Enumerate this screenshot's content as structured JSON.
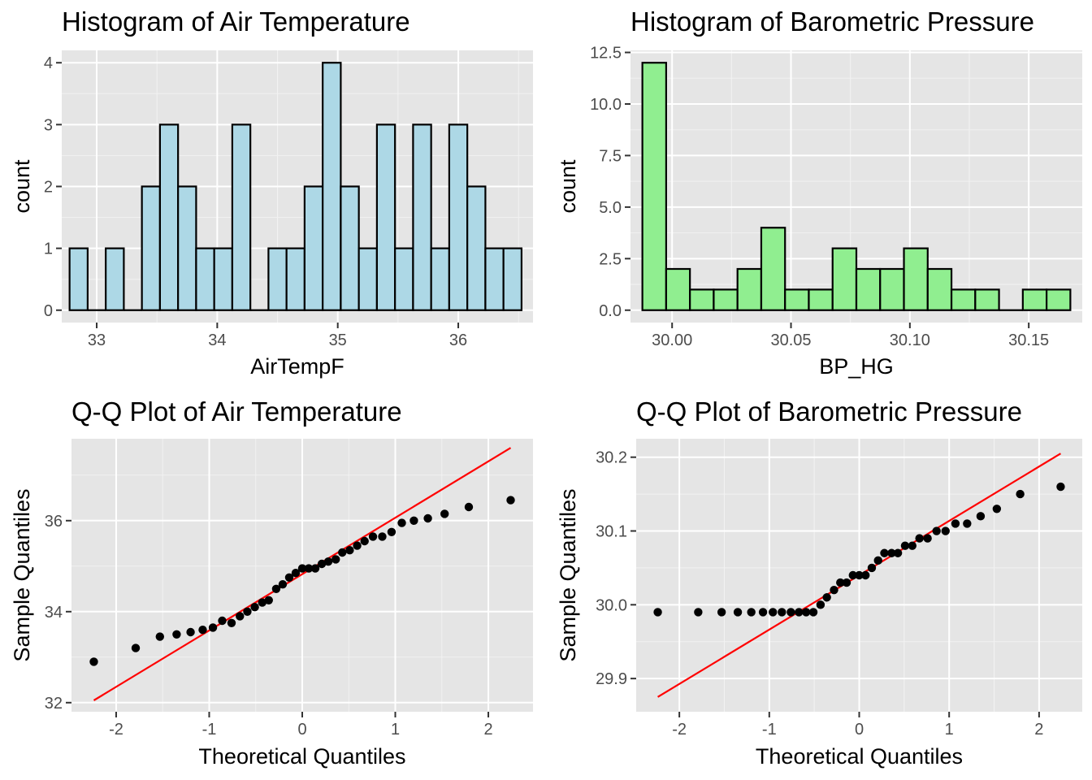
{
  "colors": {
    "panel_background": "#e5e5e5",
    "grid_major": "#ffffff",
    "grid_minor": "#f2f2f2",
    "tick": "#333333",
    "tick_text": "#4d4d4d",
    "bar_outline": "#000000",
    "point": "#000000",
    "reference_line": "#ff0000"
  },
  "chart_data": [
    {
      "type": "bar",
      "subtype": "histogram",
      "title": "Histogram of Air Temperature",
      "xlabel": "AirTempF",
      "ylabel": "count",
      "fill": "#add8e6",
      "xlim": [
        32.71,
        36.62
      ],
      "ylim": [
        -0.2,
        4.2
      ],
      "xticks": [
        33,
        34,
        35,
        36
      ],
      "xtick_labels": [
        "33",
        "34",
        "35",
        "36"
      ],
      "yticks": [
        0,
        1,
        2,
        3,
        4
      ],
      "ytick_labels": [
        "0",
        "1",
        "2",
        "3",
        "4"
      ],
      "bin_width": 0.15,
      "bin_centers": [
        32.85,
        33.0,
        33.15,
        33.3,
        33.45,
        33.6,
        33.75,
        33.9,
        34.05,
        34.2,
        34.35,
        34.5,
        34.65,
        34.8,
        34.95,
        35.1,
        35.25,
        35.4,
        35.55,
        35.7,
        35.85,
        36.0,
        36.15,
        36.3,
        36.45
      ],
      "values": [
        1,
        0,
        1,
        0,
        2,
        3,
        2,
        1,
        1,
        3,
        0,
        1,
        1,
        2,
        4,
        2,
        1,
        3,
        1,
        3,
        1,
        3,
        2,
        1,
        1
      ]
    },
    {
      "type": "bar",
      "subtype": "histogram",
      "title": "Histogram of Barometric Pressure",
      "xlabel": "BP_HG",
      "ylabel": "count",
      "fill": "#90ee90",
      "xlim": [
        29.9825,
        30.1725
      ],
      "ylim": [
        -0.6,
        12.6
      ],
      "xticks": [
        30.0,
        30.05,
        30.1,
        30.15
      ],
      "xtick_labels": [
        "30.00",
        "30.05",
        "30.10",
        "30.15"
      ],
      "yticks": [
        0,
        2.5,
        5,
        7.5,
        10,
        12.5
      ],
      "ytick_labels": [
        "0.0",
        "2.5",
        "5.0",
        "7.5",
        "10.0",
        "12.5"
      ],
      "bin_width": 0.01,
      "bin_centers": [
        29.9925,
        30.0025,
        30.0125,
        30.0225,
        30.0325,
        30.0425,
        30.0525,
        30.0625,
        30.0725,
        30.0825,
        30.0925,
        30.1025,
        30.1125,
        30.1225,
        30.1325,
        30.1425,
        30.1525,
        30.1625
      ],
      "values": [
        12,
        2,
        1,
        1,
        2,
        4,
        1,
        1,
        3,
        2,
        2,
        3,
        2,
        1,
        1,
        0,
        1,
        1
      ]
    },
    {
      "type": "scatter",
      "subtype": "qq",
      "title": "Q-Q Plot of Air Temperature",
      "xlabel": "Theoretical Quantiles",
      "ylabel": "Sample Quantiles",
      "xlim": [
        -2.48,
        2.48
      ],
      "ylim": [
        31.8,
        37.8
      ],
      "xticks": [
        -2,
        -1,
        0,
        1,
        2
      ],
      "xtick_labels": [
        "-2",
        "-1",
        "0",
        "1",
        "2"
      ],
      "yticks": [
        32,
        34,
        36
      ],
      "ytick_labels": [
        "32",
        "34",
        "36"
      ],
      "reference_line": {
        "x": [
          -2.24,
          2.24
        ],
        "y": [
          32.05,
          37.6
        ]
      },
      "points": [
        [
          -2.24,
          32.9
        ],
        [
          -1.79,
          33.2
        ],
        [
          -1.53,
          33.45
        ],
        [
          -1.35,
          33.5
        ],
        [
          -1.2,
          33.55
        ],
        [
          -1.07,
          33.6
        ],
        [
          -0.96,
          33.65
        ],
        [
          -0.86,
          33.8
        ],
        [
          -0.76,
          33.75
        ],
        [
          -0.67,
          33.9
        ],
        [
          -0.59,
          34.0
        ],
        [
          -0.51,
          34.1
        ],
        [
          -0.43,
          34.2
        ],
        [
          -0.36,
          34.25
        ],
        [
          -0.28,
          34.5
        ],
        [
          -0.21,
          34.6
        ],
        [
          -0.14,
          34.75
        ],
        [
          -0.07,
          34.85
        ],
        [
          0.0,
          34.95
        ],
        [
          0.07,
          34.95
        ],
        [
          0.14,
          34.95
        ],
        [
          0.21,
          35.05
        ],
        [
          0.28,
          35.1
        ],
        [
          0.36,
          35.15
        ],
        [
          0.43,
          35.3
        ],
        [
          0.51,
          35.35
        ],
        [
          0.59,
          35.45
        ],
        [
          0.67,
          35.55
        ],
        [
          0.76,
          35.65
        ],
        [
          0.86,
          35.65
        ],
        [
          0.96,
          35.75
        ],
        [
          1.07,
          35.95
        ],
        [
          1.2,
          36.0
        ],
        [
          1.35,
          36.05
        ],
        [
          1.53,
          36.15
        ],
        [
          1.79,
          36.3
        ],
        [
          2.24,
          36.45
        ]
      ]
    },
    {
      "type": "scatter",
      "subtype": "qq",
      "title": "Q-Q Plot of Barometric Pressure",
      "xlabel": "Theoretical Quantiles",
      "ylabel": "Sample Quantiles",
      "xlim": [
        -2.48,
        2.48
      ],
      "ylim": [
        29.855,
        30.225
      ],
      "xticks": [
        -2,
        -1,
        0,
        1,
        2
      ],
      "xtick_labels": [
        "-2",
        "-1",
        "0",
        "1",
        "2"
      ],
      "yticks": [
        29.9,
        30.0,
        30.1,
        30.2
      ],
      "ytick_labels": [
        "29.9",
        "30.0",
        "30.1",
        "30.2"
      ],
      "reference_line": {
        "x": [
          -2.24,
          2.24
        ],
        "y": [
          29.875,
          30.205
        ]
      },
      "points": [
        [
          -2.24,
          29.99
        ],
        [
          -1.79,
          29.99
        ],
        [
          -1.53,
          29.99
        ],
        [
          -1.35,
          29.99
        ],
        [
          -1.2,
          29.99
        ],
        [
          -1.07,
          29.99
        ],
        [
          -0.96,
          29.99
        ],
        [
          -0.86,
          29.99
        ],
        [
          -0.76,
          29.99
        ],
        [
          -0.67,
          29.99
        ],
        [
          -0.59,
          29.99
        ],
        [
          -0.51,
          29.99
        ],
        [
          -0.43,
          30.0
        ],
        [
          -0.36,
          30.01
        ],
        [
          -0.28,
          30.02
        ],
        [
          -0.21,
          30.03
        ],
        [
          -0.14,
          30.03
        ],
        [
          -0.07,
          30.04
        ],
        [
          0.0,
          30.04
        ],
        [
          0.07,
          30.04
        ],
        [
          0.14,
          30.05
        ],
        [
          0.21,
          30.06
        ],
        [
          0.28,
          30.07
        ],
        [
          0.36,
          30.07
        ],
        [
          0.43,
          30.07
        ],
        [
          0.51,
          30.08
        ],
        [
          0.59,
          30.08
        ],
        [
          0.67,
          30.09
        ],
        [
          0.76,
          30.09
        ],
        [
          0.86,
          30.1
        ],
        [
          0.96,
          30.1
        ],
        [
          1.07,
          30.11
        ],
        [
          1.2,
          30.11
        ],
        [
          1.35,
          30.12
        ],
        [
          1.53,
          30.13
        ],
        [
          1.79,
          30.15
        ],
        [
          2.24,
          30.16
        ]
      ]
    }
  ]
}
